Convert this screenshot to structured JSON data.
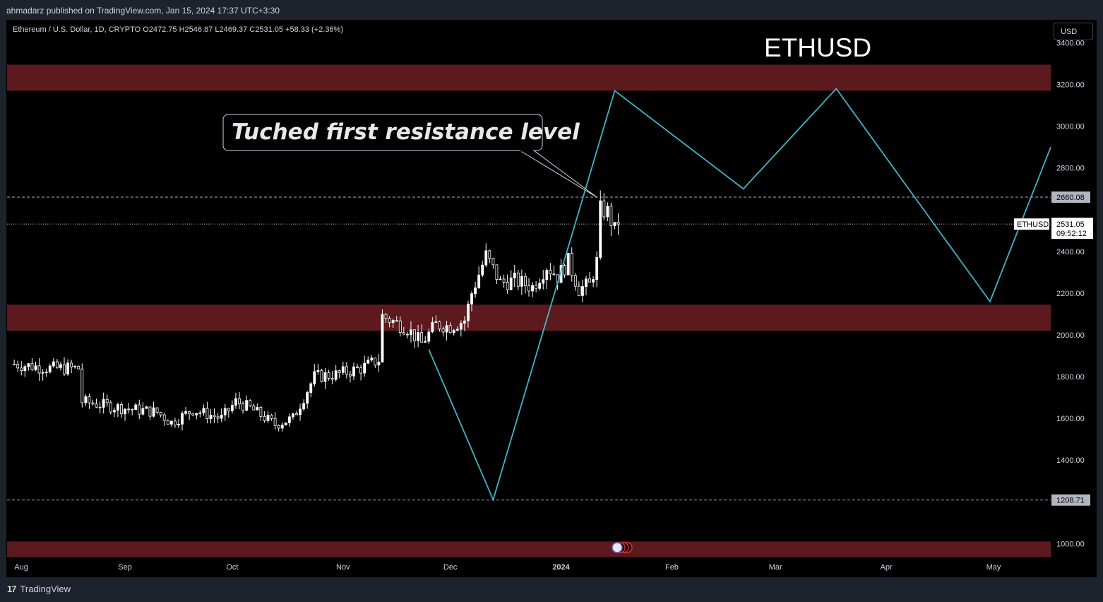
{
  "header": {
    "published": "ahmadarz published on TradingView.com, Jan 15, 2024 17:37 UTC+3:30"
  },
  "symbol": {
    "line": "Ethereum / U.S. Dollar, 1D, CRYPTO  O2472.75  H2546.87  L2469.37  C2531.05  +58.33 (+2.36%)"
  },
  "currency_button": "USD",
  "footer": {
    "brand": "TradingView",
    "brand_mark": "17"
  },
  "colors": {
    "background": "#000000",
    "zone": "#5c1a1f",
    "projection": "#3fb4c9",
    "candle": "#ffffff",
    "text": "#d1d4dc"
  },
  "chart_data": {
    "type": "candlestick",
    "title": "ETHUSD",
    "annotation": "Tuched first resistance level",
    "price_axis": {
      "min": 930,
      "max": 3510,
      "ticks": [
        1000,
        1200,
        1400,
        1600,
        1800,
        2000,
        2200,
        2400,
        2600,
        2800,
        3000,
        3200,
        3400
      ],
      "tick_labels": [
        "1000.00",
        "",
        "1400.00",
        "1600.00",
        "1800.00",
        "2000.00",
        "2200.00",
        "2400.00",
        "",
        "2800.00",
        "3000.00",
        "3200.00",
        "3400.00"
      ]
    },
    "time_axis": {
      "labels": [
        {
          "label": "Aug",
          "day": 0
        },
        {
          "label": "Sep",
          "day": 31
        },
        {
          "label": "Oct",
          "day": 61
        },
        {
          "label": "Nov",
          "day": 92
        },
        {
          "label": "Dec",
          "day": 122
        },
        {
          "label": "2024",
          "day": 153
        },
        {
          "label": "Feb",
          "day": 184
        },
        {
          "label": "Mar",
          "day": 213
        },
        {
          "label": "Apr",
          "day": 244
        },
        {
          "label": "May",
          "day": 274
        }
      ],
      "day_range": [
        -2,
        290
      ]
    },
    "zones": [
      {
        "low": 3170,
        "high": 3295
      },
      {
        "low": 2020,
        "high": 2145
      },
      {
        "low": 935,
        "high": 1010
      }
    ],
    "levels": [
      {
        "price": 2660.08,
        "label": "2660.08",
        "style": "dashed"
      },
      {
        "price": 1208.71,
        "label": "1208.71",
        "style": "dashed"
      },
      {
        "price": 2531.05,
        "label": "2531.05",
        "style": "dotted",
        "name": "ETHUSD",
        "countdown": "09:52:12"
      }
    ],
    "projection": [
      {
        "day": 116,
        "price": 1930
      },
      {
        "day": 134,
        "price": 1210
      },
      {
        "day": 168,
        "price": 3170
      },
      {
        "day": 204,
        "price": 2700
      },
      {
        "day": 230,
        "price": 3180
      },
      {
        "day": 273,
        "price": 2160
      },
      {
        "day": 290,
        "price": 2900
      }
    ],
    "close_path": [
      {
        "day": 0,
        "price": 1860
      },
      {
        "day": 10,
        "price": 1840
      },
      {
        "day": 18,
        "price": 1840
      },
      {
        "day": 19,
        "price": 1680
      },
      {
        "day": 30,
        "price": 1650
      },
      {
        "day": 40,
        "price": 1630
      },
      {
        "day": 44,
        "price": 1580
      },
      {
        "day": 50,
        "price": 1640
      },
      {
        "day": 58,
        "price": 1600
      },
      {
        "day": 62,
        "price": 1680
      },
      {
        "day": 66,
        "price": 1650
      },
      {
        "day": 73,
        "price": 1570
      },
      {
        "day": 78,
        "price": 1600
      },
      {
        "day": 84,
        "price": 1800
      },
      {
        "day": 90,
        "price": 1810
      },
      {
        "day": 97,
        "price": 1840
      },
      {
        "day": 102,
        "price": 1880
      },
      {
        "day": 103,
        "price": 2090
      },
      {
        "day": 110,
        "price": 2030
      },
      {
        "day": 114,
        "price": 1960
      },
      {
        "day": 118,
        "price": 2050
      },
      {
        "day": 122,
        "price": 2040
      },
      {
        "day": 126,
        "price": 2070
      },
      {
        "day": 128,
        "price": 2200
      },
      {
        "day": 132,
        "price": 2380
      },
      {
        "day": 136,
        "price": 2250
      },
      {
        "day": 140,
        "price": 2260
      },
      {
        "day": 145,
        "price": 2230
      },
      {
        "day": 149,
        "price": 2330
      },
      {
        "day": 152,
        "price": 2280
      },
      {
        "day": 155,
        "price": 2350
      },
      {
        "day": 158,
        "price": 2220
      },
      {
        "day": 161,
        "price": 2240
      },
      {
        "day": 163,
        "price": 2350
      },
      {
        "day": 164,
        "price": 2600
      },
      {
        "day": 166,
        "price": 2590
      },
      {
        "day": 168,
        "price": 2500
      },
      {
        "day": 169,
        "price": 2531
      }
    ],
    "range_pct": 0.035
  }
}
